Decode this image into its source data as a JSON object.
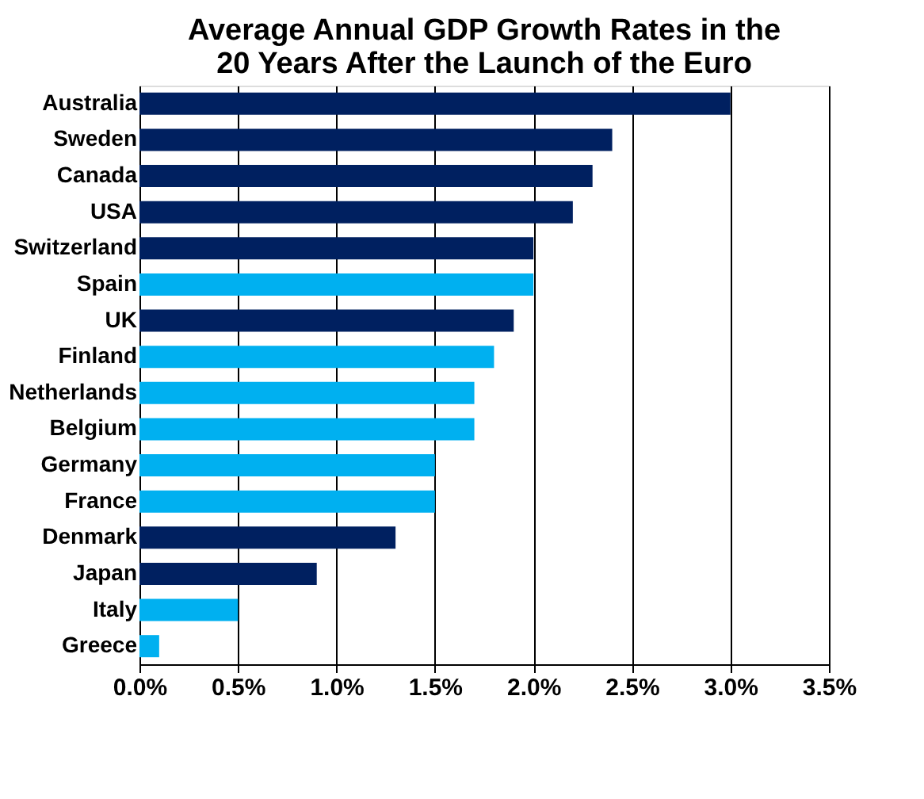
{
  "chart_data": {
    "type": "bar",
    "orientation": "horizontal",
    "title": "Average Annual GDP Growth Rates in the\n20 Years After the Launch of the Euro",
    "categories": [
      "Australia",
      "Sweden",
      "Canada",
      "USA",
      "Switzerland",
      "Spain",
      "UK",
      "Finland",
      "Netherlands",
      "Belgium",
      "Germany",
      "France",
      "Denmark",
      "Japan",
      "Italy",
      "Greece"
    ],
    "values": [
      3.0,
      2.4,
      2.3,
      2.2,
      2.0,
      2.0,
      1.9,
      1.8,
      1.7,
      1.7,
      1.5,
      1.5,
      1.3,
      0.9,
      0.5,
      0.1
    ],
    "colors": [
      "#002060",
      "#002060",
      "#002060",
      "#002060",
      "#002060",
      "#00b0f0",
      "#002060",
      "#00b0f0",
      "#00b0f0",
      "#00b0f0",
      "#00b0f0",
      "#00b0f0",
      "#002060",
      "#002060",
      "#00b0f0",
      "#00b0f0"
    ],
    "xlim": [
      0,
      3.5
    ],
    "xticks": [
      {
        "value": 0,
        "label": "0.0%"
      },
      {
        "value": 0.5,
        "label": "0.5%"
      },
      {
        "value": 1.0,
        "label": "1.0%"
      },
      {
        "value": 1.5,
        "label": "1.5%"
      },
      {
        "value": 2.0,
        "label": "2.0%"
      },
      {
        "value": 2.5,
        "label": "2.5%"
      },
      {
        "value": 3.0,
        "label": "3.0%"
      },
      {
        "value": 3.5,
        "label": "3.5%"
      }
    ],
    "grid": "x"
  }
}
